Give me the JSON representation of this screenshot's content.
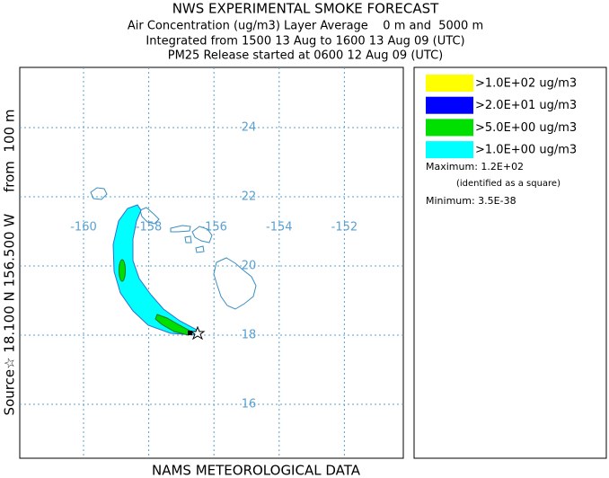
{
  "header": {
    "title": "NWS EXPERIMENTAL SMOKE FORECAST",
    "lines": [
      "Air Concentration (ug/m3) Layer Average    0 m and  5000 m",
      "Integrated from 1500 13 Aug to 1600 13 Aug 09 (UTC)",
      "PM25 Release started at 0600 12 Aug 09 (UTC)"
    ]
  },
  "map": {
    "source_label": "Source☆ 18.100 N 156.500 W     from  100 m",
    "latitudes": [
      24,
      22,
      20,
      18,
      16
    ],
    "longitudes": [
      -160,
      -158,
      -156,
      -154,
      -152
    ],
    "grid_color": "#5aa0d0"
  },
  "legend": {
    "items": [
      {
        "label": ">1.0E+02 ug/m3",
        "color": "#ffff00"
      },
      {
        "label": ">2.0E+01 ug/m3",
        "color": "#0000ff"
      },
      {
        "label": ">5.0E+00 ug/m3",
        "color": "#00e000"
      },
      {
        "label": ">1.0E+00 ug/m3",
        "color": "#00ffff"
      }
    ],
    "maximum": "Maximum: 1.2E+02",
    "max_note": "(identified as a square)",
    "minimum": "Minimum: 3.5E-38"
  },
  "footer": "NAMS METEOROLOGICAL DATA"
}
